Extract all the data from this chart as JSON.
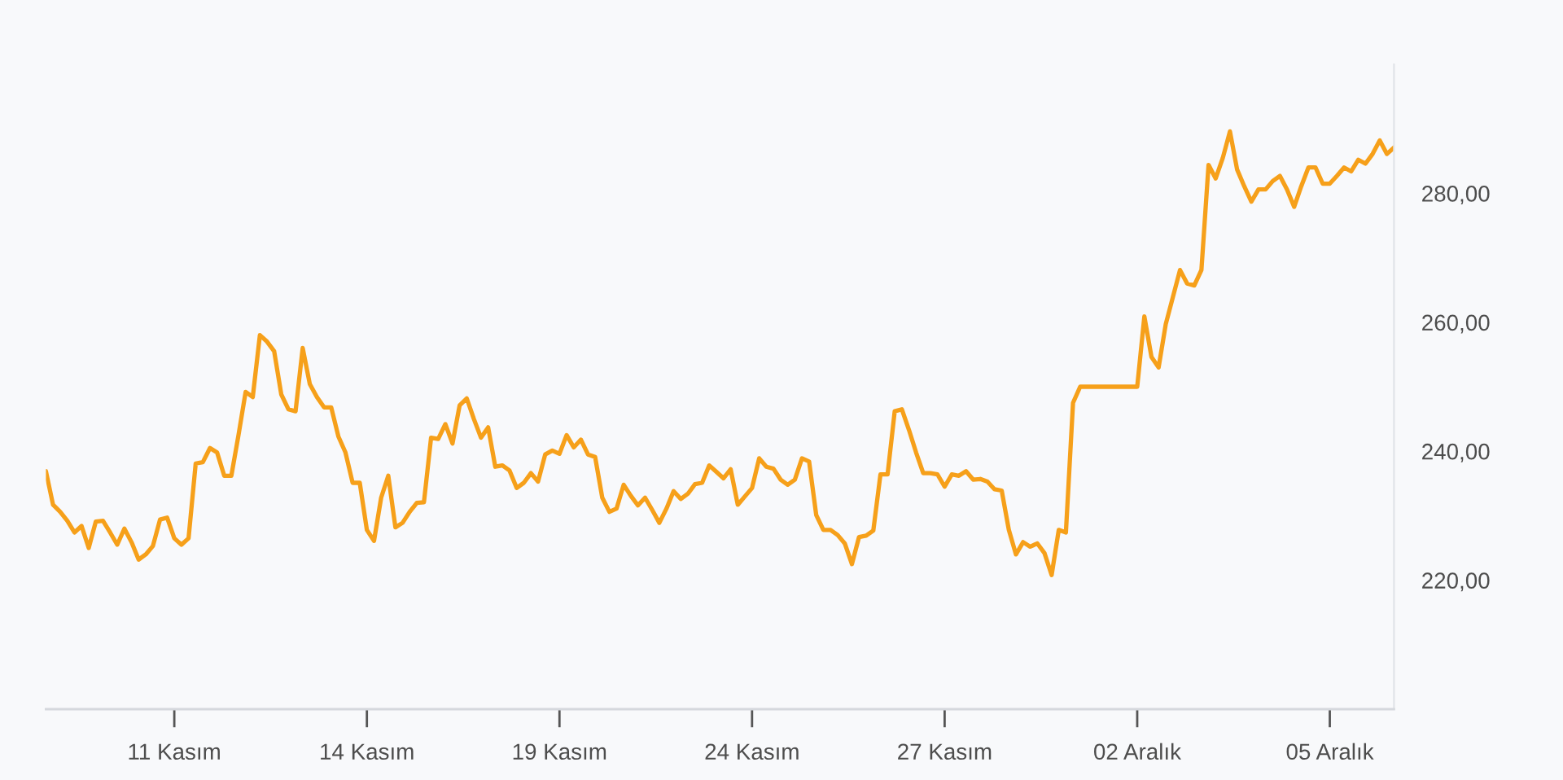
{
  "chart_data": {
    "type": "line",
    "categories": [
      null,
      null,
      null,
      null,
      null,
      null,
      null,
      null,
      null,
      null,
      null,
      null,
      null,
      null,
      null,
      null,
      null,
      null,
      "11 Kasım",
      null,
      null,
      null,
      null,
      null,
      null,
      null,
      null,
      null,
      null,
      null,
      null,
      null,
      null,
      null,
      null,
      null,
      null,
      null,
      null,
      null,
      null,
      null,
      null,
      null,
      null,
      "14 Kasım",
      null,
      null,
      null,
      null,
      null,
      null,
      null,
      null,
      null,
      null,
      null,
      null,
      null,
      null,
      null,
      null,
      null,
      null,
      null,
      null,
      null,
      null,
      null,
      null,
      null,
      null,
      "19 Kasım",
      null,
      null,
      null,
      null,
      null,
      null,
      null,
      null,
      null,
      null,
      null,
      null,
      null,
      null,
      null,
      null,
      null,
      null,
      null,
      null,
      null,
      null,
      null,
      null,
      null,
      null,
      "24 Kasım",
      null,
      null,
      null,
      null,
      null,
      null,
      null,
      null,
      null,
      null,
      null,
      null,
      null,
      null,
      null,
      null,
      null,
      null,
      null,
      null,
      null,
      null,
      null,
      null,
      null,
      null,
      "27 Kasım",
      null,
      null,
      null,
      null,
      null,
      null,
      null,
      null,
      null,
      null,
      null,
      null,
      null,
      null,
      null,
      null,
      null,
      null,
      null,
      null,
      null,
      null,
      null,
      null,
      null,
      null,
      "02 Aralık",
      null,
      null,
      null,
      null,
      null,
      null,
      null,
      null,
      null,
      null,
      null,
      null,
      null,
      null,
      null,
      null,
      null,
      null,
      null,
      null,
      null,
      null,
      null,
      null,
      null,
      null,
      "05 Aralık",
      null,
      null,
      null,
      null,
      null,
      null,
      null,
      null,
      null
    ],
    "series": [
      {
        "color": "#f6a01a",
        "values": [
          236.9,
          231.7,
          230.6,
          229.2,
          227.4,
          228.4,
          225.0,
          229.1,
          229.2,
          227.4,
          225.5,
          228.0,
          225.9,
          223.2,
          224.0,
          225.3,
          229.4,
          229.7,
          226.5,
          225.5,
          226.5,
          238.1,
          238.3,
          240.5,
          239.8,
          236.2,
          236.2,
          242.5,
          249.2,
          248.4,
          258.0,
          257.0,
          255.5,
          248.8,
          246.5,
          246.2,
          256.0,
          250.4,
          248.4,
          246.8,
          246.8,
          242.3,
          239.8,
          235.1,
          235.1,
          227.8,
          226.1,
          232.8,
          236.2,
          228.2,
          228.9,
          230.6,
          232.0,
          232.1,
          242.1,
          241.9,
          244.2,
          241.2,
          247.1,
          248.2,
          245.0,
          242.1,
          243.7,
          237.6,
          237.8,
          237.0,
          234.3,
          235.1,
          236.6,
          235.3,
          239.5,
          240.1,
          239.6,
          242.5,
          240.6,
          241.8,
          239.5,
          239.1,
          232.8,
          230.6,
          231.1,
          234.8,
          233.1,
          231.6,
          232.8,
          230.9,
          228.9,
          231.1,
          233.8,
          232.6,
          233.4,
          234.9,
          235.1,
          237.8,
          236.8,
          235.8,
          237.2,
          231.7,
          233.0,
          234.3,
          238.9,
          237.6,
          237.3,
          235.6,
          234.8,
          235.6,
          238.9,
          238.4,
          230.1,
          227.8,
          227.8,
          227.0,
          225.7,
          222.5,
          226.7,
          226.9,
          227.7,
          236.4,
          236.4,
          246.2,
          246.5,
          243.3,
          239.8,
          236.6,
          236.6,
          236.4,
          234.5,
          236.4,
          236.2,
          236.9,
          235.6,
          235.7,
          235.3,
          234.1,
          233.9,
          227.8,
          224.0,
          225.9,
          225.2,
          225.7,
          224.2,
          220.8,
          227.8,
          227.4,
          247.5,
          250.0,
          250.0,
          250.0,
          250.0,
          250.0,
          250.0,
          250.0,
          250.0,
          250.0,
          260.9,
          254.6,
          253.0,
          259.7,
          263.9,
          268.1,
          266.0,
          265.7,
          268.1,
          284.4,
          282.3,
          285.5,
          289.6,
          283.7,
          281.1,
          278.7,
          280.6,
          280.6,
          281.9,
          282.7,
          280.6,
          277.9,
          281.1,
          284.0,
          284.0,
          281.5,
          281.5,
          282.7,
          284.0,
          283.4,
          285.2,
          284.6,
          286.1,
          288.2,
          286.1,
          287.1
        ]
      }
    ],
    "ylim": [
      200,
      300
    ],
    "yticks": [
      {
        "value": 220,
        "label": "220,00"
      },
      {
        "value": 240,
        "label": "240,00"
      },
      {
        "value": 260,
        "label": "260,00"
      },
      {
        "value": 280,
        "label": "280,00"
      }
    ]
  }
}
